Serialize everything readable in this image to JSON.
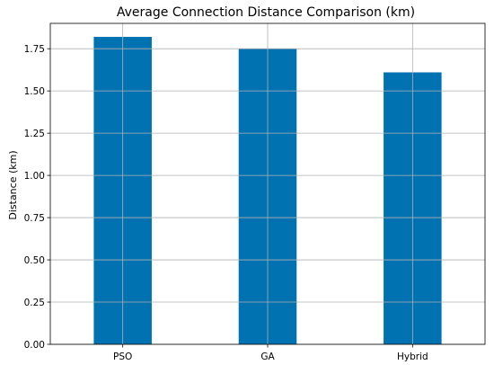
{
  "chart_data": {
    "type": "bar",
    "title": "Average Connection Distance Comparison (km)",
    "xlabel": "",
    "ylabel": "Distance (km)",
    "categories": [
      "PSO",
      "GA",
      "Hybrid"
    ],
    "values": [
      1.82,
      1.75,
      1.61
    ],
    "ylim": [
      0,
      1.9
    ],
    "yticks": [
      0.0,
      0.25,
      0.5,
      0.75,
      1.0,
      1.25,
      1.5,
      1.75
    ],
    "ytick_labels": [
      "0.00",
      "0.25",
      "0.50",
      "0.75",
      "1.00",
      "1.25",
      "1.50",
      "1.75"
    ],
    "grid": true,
    "bar_color": "#0072b2",
    "grid_color": "#b0b0b0"
  }
}
